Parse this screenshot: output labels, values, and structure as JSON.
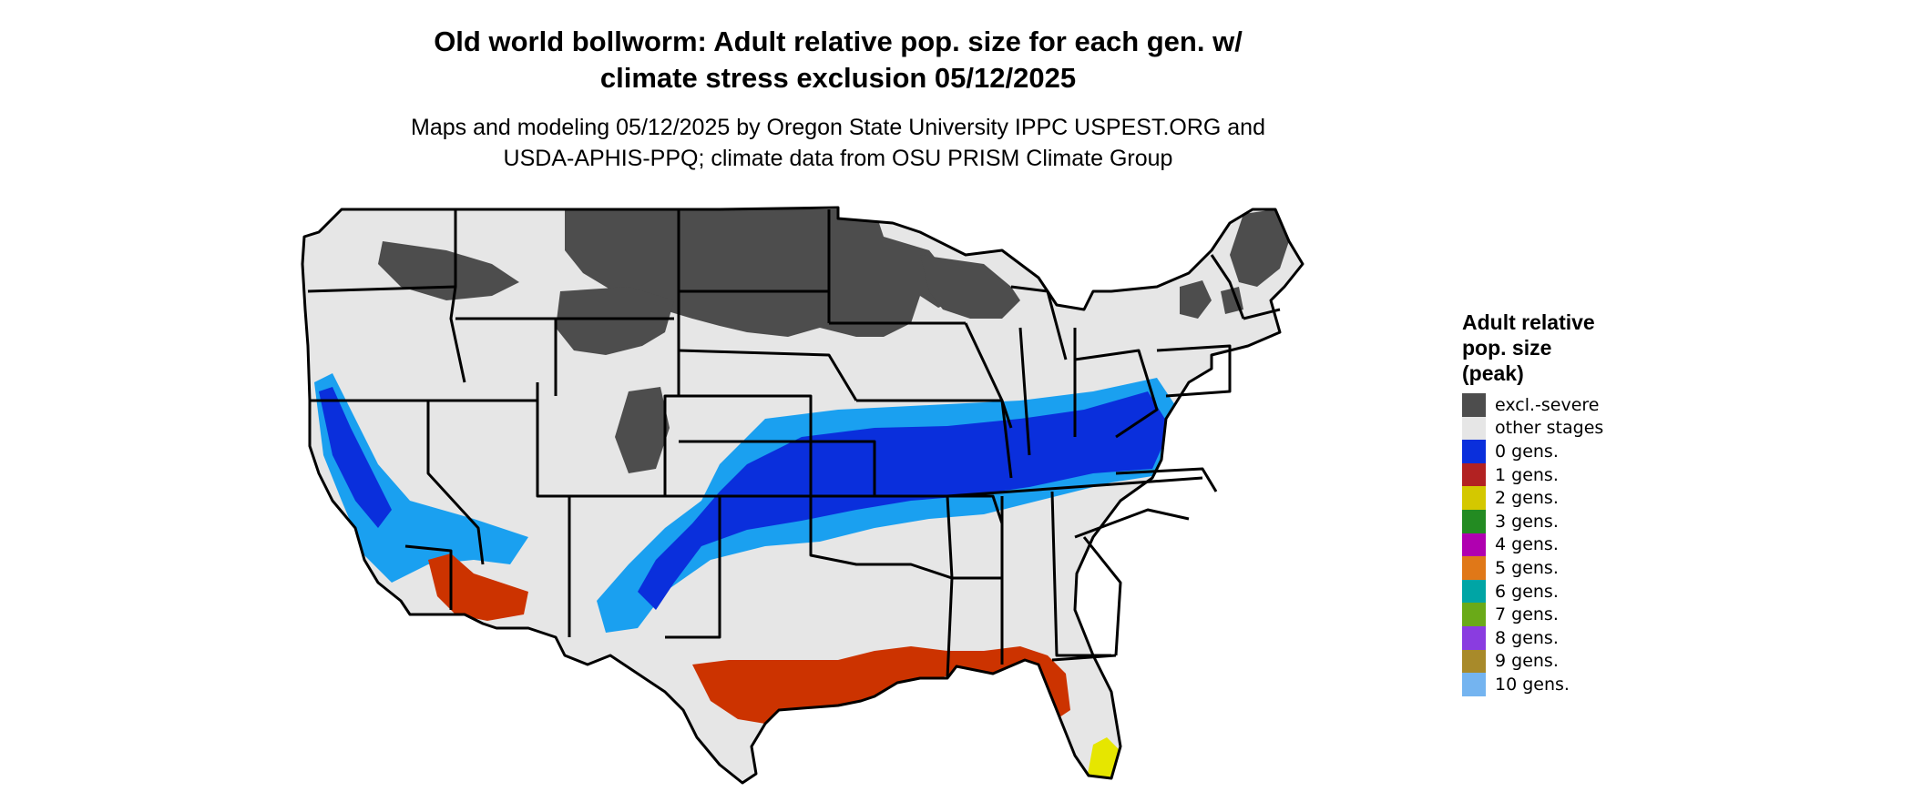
{
  "title_line1": "Old world bollworm: Adult relative pop. size for each gen. w/",
  "title_line2": "climate stress exclusion 05/12/2025",
  "subtitle_line1": "Maps and modeling 05/12/2025 by Oregon State University IPPC USPEST.ORG and",
  "subtitle_line2": "USDA-APHIS-PPQ; climate data from OSU PRISM Climate Group",
  "legend": {
    "title_lines": [
      "Adult relative",
      "pop. size",
      "(peak)"
    ],
    "items": [
      {
        "label": "excl.-severe",
        "color": "#4d4d4d"
      },
      {
        "label": "other stages",
        "color": "#e6e6e6"
      },
      {
        "label": "0 gens.",
        "color": "#0a2fdc"
      },
      {
        "label": "1 gens.",
        "color": "#b22222"
      },
      {
        "label": "2 gens.",
        "color": "#d4c800"
      },
      {
        "label": "3 gens.",
        "color": "#238b22"
      },
      {
        "label": "4 gens.",
        "color": "#b000b0"
      },
      {
        "label": "5 gens.",
        "color": "#e07818"
      },
      {
        "label": "6 gens.",
        "color": "#00a5a5"
      },
      {
        "label": "7 gens.",
        "color": "#6aaa18"
      },
      {
        "label": "8 gens.",
        "color": "#8a3ce0"
      },
      {
        "label": "9 gens.",
        "color": "#a88a2a"
      },
      {
        "label": "10 gens.",
        "color": "#74b4f0"
      }
    ]
  },
  "map_colors": {
    "background_land": "#e6e6e6",
    "excluded": "#4d4d4d",
    "gen0_dark": "#0a2fdc",
    "gen0_light": "#1aa0f0",
    "gen1_red": "#cc3300",
    "gen2_yellow": "#e6e600",
    "border": "#000000"
  }
}
